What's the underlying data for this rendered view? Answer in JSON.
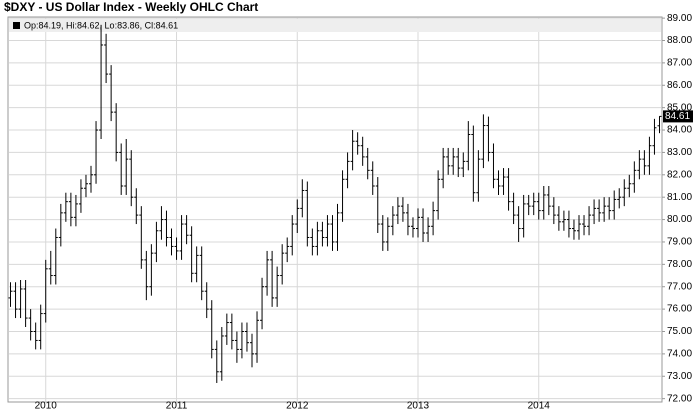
{
  "chart_data": {
    "type": "ohlc",
    "title": "$DXY - US Dollar Index - Weekly OHLC Chart",
    "header_text": "Op:84.19, Hi:84.62, Lo:83.86, Cl:84.61",
    "categories": [
      null,
      null,
      null,
      null,
      null,
      null,
      null,
      "2010",
      null,
      null,
      null,
      null,
      null,
      null,
      null,
      null,
      null,
      null,
      null,
      null,
      null,
      null,
      null,
      null,
      null,
      null,
      null,
      null,
      null,
      null,
      null,
      null,
      null,
      "2011",
      null,
      null,
      null,
      null,
      null,
      null,
      null,
      null,
      null,
      null,
      null,
      null,
      null,
      null,
      null,
      null,
      null,
      null,
      null,
      null,
      null,
      null,
      null,
      "2012",
      null,
      null,
      null,
      null,
      null,
      null,
      null,
      null,
      null,
      null,
      null,
      null,
      null,
      null,
      null,
      null,
      null,
      null,
      null,
      null,
      null,
      null,
      null,
      "2013",
      null,
      null,
      null,
      null,
      null,
      null,
      null,
      null,
      null,
      null,
      null,
      null,
      null,
      null,
      null,
      null,
      null,
      null,
      null,
      null,
      null,
      null,
      null,
      "2014",
      null,
      null,
      null,
      null,
      null,
      null,
      null,
      null,
      null,
      null,
      null,
      null,
      null,
      null,
      null,
      null,
      null,
      null,
      null,
      null,
      null,
      null,
      null,
      null
    ],
    "series": [
      {
        "color": "#000000",
        "open": [
          76.5,
          76.8,
          76.0,
          76.9,
          75.6,
          75.0,
          74.6,
          75.8,
          77.8,
          77.5,
          79.2,
          80.3,
          80.8,
          80.1,
          80.7,
          81.4,
          81.6,
          82.0,
          84.0,
          87.8,
          86.5,
          84.8,
          83.0,
          81.5,
          82.7,
          81.0,
          80.2,
          78.2,
          77.0,
          78.5,
          79.5,
          80.0,
          79.2,
          78.8,
          78.6,
          79.8,
          79.3,
          77.6,
          78.4,
          76.8,
          76.0,
          74.2,
          73.2,
          74.8,
          75.4,
          74.6,
          74.2,
          75.0,
          74.5,
          74.0,
          75.5,
          77.0,
          78.2,
          76.5,
          77.5,
          78.5,
          78.8,
          79.8,
          80.5,
          81.3,
          79.2,
          78.8,
          79.5,
          79.2,
          79.8,
          79.0,
          80.3,
          81.8,
          82.6,
          83.5,
          83.3,
          82.8,
          82.2,
          81.5,
          79.8,
          79.0,
          79.7,
          80.2,
          80.6,
          80.3,
          79.7,
          79.6,
          80.1,
          79.4,
          79.7,
          80.4,
          81.8,
          82.8,
          82.4,
          82.8,
          82.3,
          82.6,
          83.8,
          81.2,
          82.7,
          84.2,
          83.0,
          81.8,
          81.5,
          81.9,
          80.8,
          80.2,
          79.6,
          80.7,
          80.6,
          80.8,
          80.4,
          81.1,
          80.6,
          80.2,
          79.9,
          80.0,
          79.6,
          79.5,
          79.8,
          79.7,
          80.2,
          80.5,
          80.3,
          80.6,
          80.4,
          80.9,
          81.0,
          81.4,
          81.6,
          82.2,
          82.7,
          82.4,
          83.3,
          84.19
        ],
        "high": [
          77.2,
          77.2,
          77.3,
          77.3,
          76.0,
          75.4,
          76.2,
          78.2,
          78.6,
          79.6,
          80.7,
          81.2,
          81.2,
          81.1,
          81.8,
          82.0,
          82.4,
          84.4,
          88.7,
          88.3,
          86.9,
          85.2,
          83.4,
          83.6,
          83.1,
          81.4,
          80.6,
          78.6,
          78.9,
          79.9,
          80.6,
          80.4,
          79.6,
          79.2,
          80.2,
          80.2,
          79.7,
          78.8,
          78.8,
          77.2,
          76.4,
          74.6,
          75.2,
          75.8,
          75.8,
          75.0,
          75.4,
          75.4,
          74.9,
          75.9,
          77.4,
          78.6,
          78.6,
          77.9,
          78.9,
          79.2,
          80.2,
          80.9,
          81.8,
          81.7,
          79.6,
          79.9,
          79.9,
          80.2,
          80.2,
          80.7,
          82.2,
          83.0,
          84.0,
          83.9,
          83.7,
          83.2,
          82.6,
          81.9,
          80.2,
          80.1,
          80.6,
          81.0,
          81.0,
          80.7,
          80.1,
          80.5,
          80.5,
          80.1,
          80.8,
          82.2,
          83.2,
          83.2,
          83.2,
          83.2,
          83.0,
          84.4,
          84.2,
          83.1,
          84.7,
          84.6,
          83.4,
          82.2,
          82.3,
          82.3,
          81.2,
          80.6,
          81.1,
          81.1,
          81.2,
          81.2,
          81.5,
          81.5,
          81.0,
          80.6,
          80.4,
          80.4,
          80.0,
          80.2,
          80.2,
          80.6,
          80.9,
          80.9,
          81.0,
          81.0,
          81.3,
          81.4,
          81.8,
          82.0,
          82.6,
          83.1,
          83.1,
          83.7,
          84.5,
          84.62
        ],
        "low": [
          76.1,
          75.6,
          75.6,
          75.2,
          74.6,
          74.2,
          74.2,
          75.4,
          77.1,
          77.1,
          78.8,
          79.9,
          79.7,
          79.7,
          80.3,
          81.0,
          81.2,
          81.6,
          83.6,
          86.1,
          84.4,
          82.6,
          81.1,
          81.1,
          80.6,
          79.8,
          77.8,
          76.4,
          76.6,
          78.1,
          79.1,
          78.8,
          78.4,
          78.2,
          78.2,
          78.9,
          77.2,
          77.2,
          76.4,
          75.6,
          73.8,
          72.7,
          72.8,
          74.4,
          74.2,
          73.6,
          73.8,
          74.1,
          73.4,
          73.6,
          75.1,
          76.6,
          76.1,
          76.1,
          77.1,
          78.1,
          78.4,
          79.4,
          80.1,
          78.8,
          78.4,
          78.4,
          78.8,
          78.8,
          78.6,
          78.6,
          79.9,
          81.4,
          82.2,
          82.9,
          82.4,
          81.8,
          81.1,
          79.4,
          78.6,
          78.6,
          79.3,
          79.8,
          79.9,
          79.3,
          79.2,
          79.2,
          79.0,
          79.0,
          79.3,
          80.0,
          81.4,
          82.0,
          82.0,
          81.9,
          81.9,
          82.2,
          80.8,
          80.8,
          82.3,
          82.6,
          81.4,
          81.1,
          81.1,
          80.4,
          79.8,
          79.0,
          79.2,
          80.2,
          80.2,
          80.0,
          80.0,
          80.2,
          79.8,
          79.5,
          79.5,
          79.2,
          79.1,
          79.1,
          79.3,
          79.3,
          79.8,
          79.9,
          79.9,
          80.0,
          80.0,
          80.5,
          80.6,
          81.0,
          81.2,
          81.8,
          82.0,
          82.0,
          82.9,
          83.86
        ],
        "close": [
          76.8,
          76.0,
          76.9,
          75.6,
          75.0,
          74.6,
          75.8,
          77.8,
          77.5,
          79.2,
          80.3,
          80.8,
          80.1,
          80.7,
          81.4,
          81.6,
          82.0,
          84.0,
          87.8,
          86.5,
          84.8,
          83.0,
          81.5,
          82.7,
          81.0,
          80.2,
          78.2,
          77.0,
          78.5,
          79.5,
          80.0,
          79.2,
          78.8,
          78.6,
          79.8,
          79.3,
          77.6,
          78.4,
          76.8,
          76.0,
          74.2,
          73.2,
          74.8,
          75.4,
          74.6,
          74.2,
          75.0,
          74.5,
          74.0,
          75.5,
          77.0,
          78.2,
          76.5,
          77.5,
          78.5,
          78.8,
          79.8,
          80.5,
          81.3,
          79.2,
          78.8,
          79.5,
          79.2,
          79.8,
          79.0,
          80.3,
          81.8,
          82.6,
          83.5,
          83.3,
          82.8,
          82.2,
          81.5,
          79.8,
          79.0,
          79.7,
          80.2,
          80.6,
          80.3,
          79.7,
          79.6,
          80.1,
          79.4,
          79.7,
          80.4,
          81.8,
          82.8,
          82.4,
          82.8,
          82.3,
          82.6,
          83.8,
          81.2,
          82.7,
          84.2,
          83.0,
          81.8,
          81.5,
          81.9,
          80.8,
          80.2,
          79.6,
          80.7,
          80.6,
          80.8,
          80.4,
          81.1,
          80.6,
          80.2,
          79.9,
          80.0,
          79.6,
          79.5,
          79.8,
          79.7,
          80.2,
          80.5,
          80.3,
          80.6,
          80.4,
          80.9,
          81.0,
          81.4,
          81.6,
          82.2,
          82.7,
          82.4,
          83.3,
          84.1,
          84.61
        ]
      }
    ],
    "ylim": [
      71.85,
      89.05
    ],
    "yticks": [
      {
        "value": 72,
        "label": "72.00"
      },
      {
        "value": 73,
        "label": "73.00"
      },
      {
        "value": 74,
        "label": "74.00"
      },
      {
        "value": 75,
        "label": "75.00"
      },
      {
        "value": 76,
        "label": "76.00"
      },
      {
        "value": 77,
        "label": "77.00"
      },
      {
        "value": 78,
        "label": "78.00"
      },
      {
        "value": 79,
        "label": "79.00"
      },
      {
        "value": 80,
        "label": "80.00"
      },
      {
        "value": 81,
        "label": "81.00"
      },
      {
        "value": 82,
        "label": "82.00"
      },
      {
        "value": 83,
        "label": "83.00"
      },
      {
        "value": 84,
        "label": "84.00"
      },
      {
        "value": 85,
        "label": "85.00"
      },
      {
        "value": 86,
        "label": "86.00"
      },
      {
        "value": 87,
        "label": "87.00"
      },
      {
        "value": 88,
        "label": "88.00"
      },
      {
        "value": 89,
        "label": "89.00"
      }
    ],
    "grid": true
  }
}
